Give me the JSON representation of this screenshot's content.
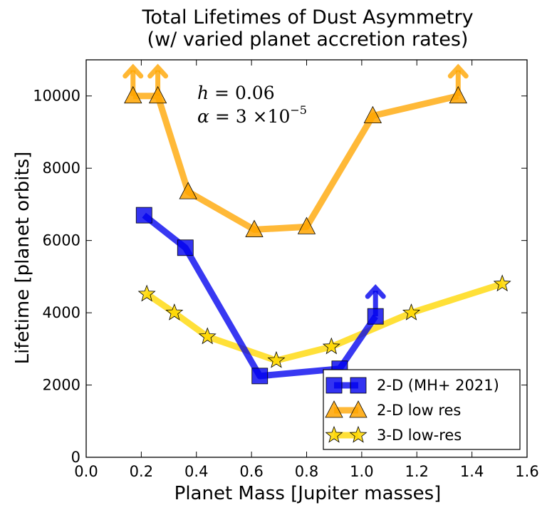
{
  "chart_data": {
    "type": "line",
    "title": "Total Lifetimes of Dust Asymmetry",
    "subtitle": "(w/ varied planet accretion rates)",
    "xlabel": "Planet Mass [Jupiter masses]",
    "ylabel": "Lifetime [planet orbits]",
    "xlim": [
      0.0,
      1.6
    ],
    "ylim": [
      0,
      11000
    ],
    "xticks": [
      "0.0",
      "0.2",
      "0.4",
      "0.6",
      "0.8",
      "1.0",
      "1.2",
      "1.4",
      "1.6"
    ],
    "yticks": [
      "0",
      "2000",
      "4000",
      "6000",
      "8000",
      "10000"
    ],
    "grid": false,
    "legend_position": "bottom-right",
    "annotation": {
      "h_label": "h",
      "h_value": "0.06",
      "alpha_label": "α",
      "alpha_value": "3 ×10",
      "alpha_exp": "−5"
    },
    "series": [
      {
        "name": "2-D (MH+ 2021)",
        "color": "#0000ee",
        "marker": "square",
        "x": [
          0.21,
          0.36,
          0.63,
          0.92,
          1.05
        ],
        "y": [
          6700,
          5800,
          2250,
          2450,
          3900
        ],
        "lower_limit_index": [
          4
        ]
      },
      {
        "name": "2-D low res",
        "color": "#ffa500",
        "marker": "triangle",
        "x": [
          0.17,
          0.26,
          0.37,
          0.61,
          0.8,
          1.04,
          1.35
        ],
        "y": [
          10000,
          10000,
          7350,
          6300,
          6380,
          9450,
          10000
        ],
        "lower_limit_index": [
          0,
          1,
          6
        ]
      },
      {
        "name": "3-D low-res",
        "color": "#ffd700",
        "marker": "star",
        "x": [
          0.22,
          0.32,
          0.44,
          0.69,
          0.89,
          1.18,
          1.51
        ],
        "y": [
          4520,
          4000,
          3340,
          2680,
          3060,
          4000,
          4800
        ]
      }
    ]
  }
}
